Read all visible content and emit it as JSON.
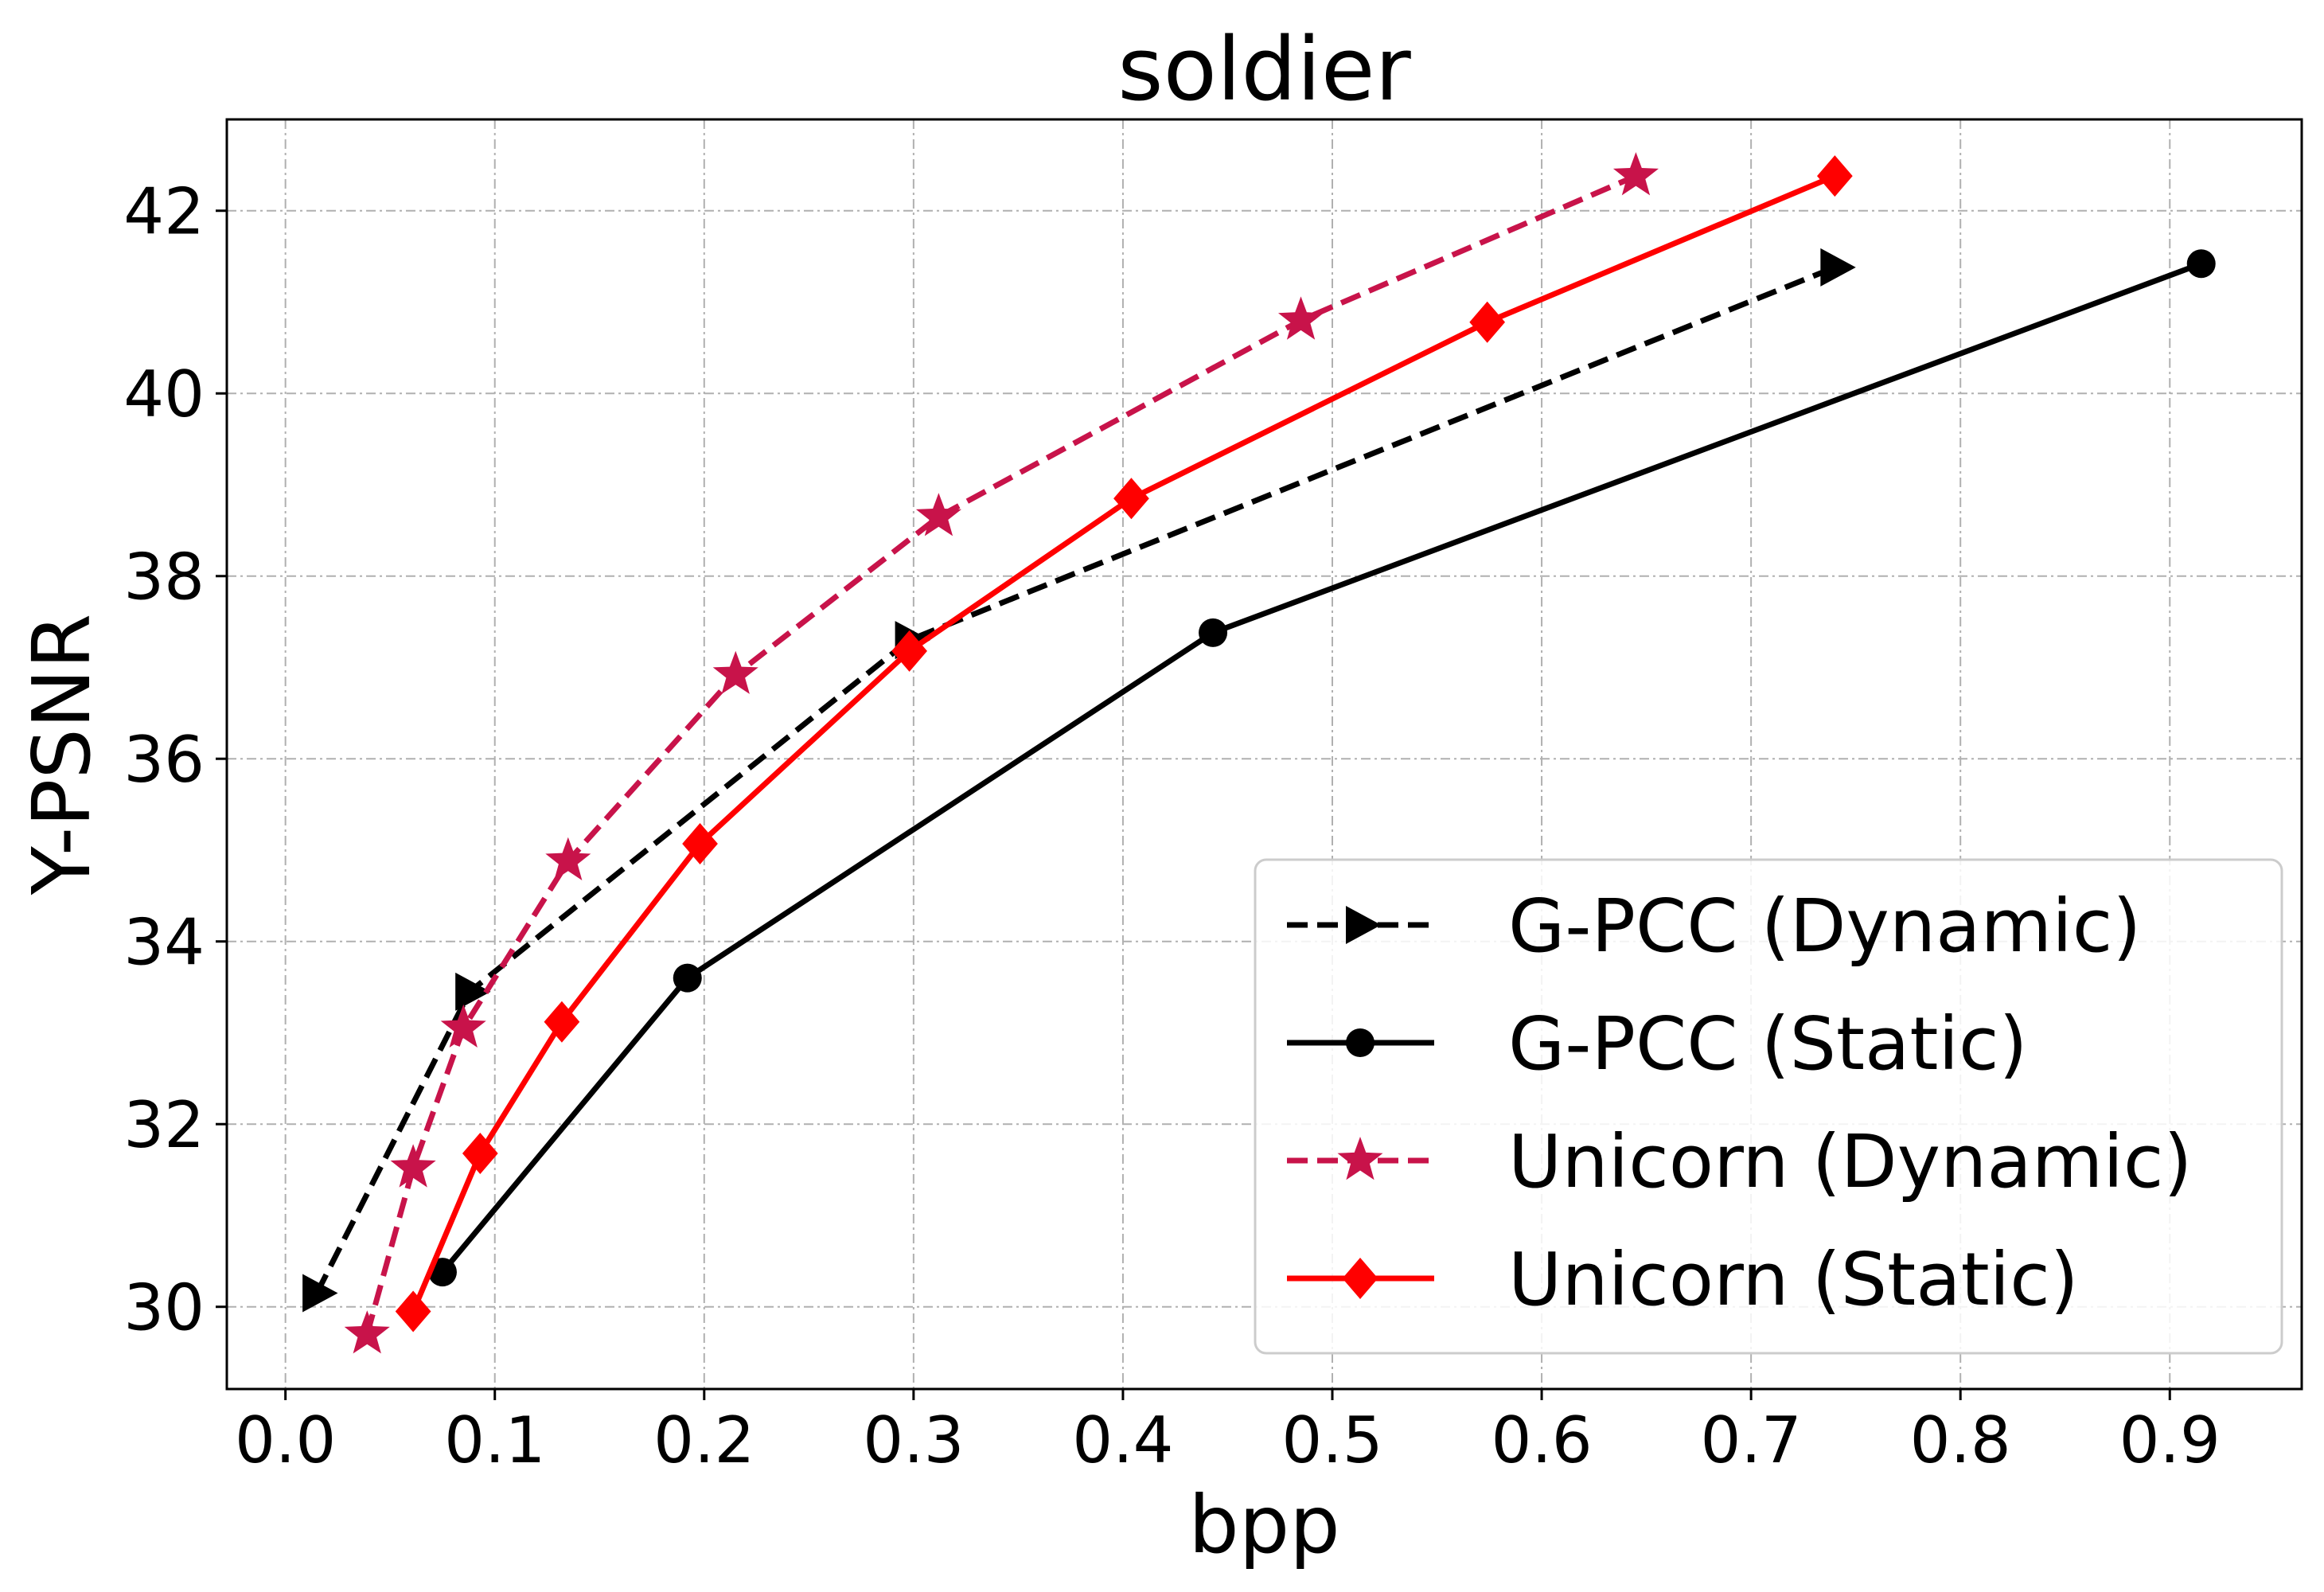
{
  "chart_data": {
    "type": "line",
    "title": "soldier",
    "xlabel": "bpp",
    "ylabel": "Y-PSNR",
    "xlim": [
      -0.028,
      0.963
    ],
    "ylim": [
      29.1,
      43.0
    ],
    "xticks": [
      0.0,
      0.1,
      0.2,
      0.3,
      0.4,
      0.5,
      0.6,
      0.7,
      0.8,
      0.9
    ],
    "xtick_labels": [
      "0.0",
      "0.1",
      "0.2",
      "0.3",
      "0.4",
      "0.5",
      "0.6",
      "0.7",
      "0.8",
      "0.9"
    ],
    "yticks": [
      30,
      32,
      34,
      36,
      38,
      40,
      42
    ],
    "ytick_labels": [
      "30",
      "32",
      "34",
      "36",
      "38",
      "40",
      "42"
    ],
    "grid": true,
    "legend_position": "lower-right",
    "series": [
      {
        "name": "G-PCC (Dynamic)",
        "color": "#000000",
        "linestyle": "dashed",
        "marker": "triangle-right",
        "x": [
          0.015,
          0.088,
          0.298,
          0.74
        ],
        "y": [
          30.15,
          33.45,
          37.3,
          41.38
        ]
      },
      {
        "name": "G-PCC (Static)",
        "color": "#000000",
        "linestyle": "solid",
        "marker": "circle",
        "x": [
          0.075,
          0.192,
          0.443,
          0.915
        ],
        "y": [
          30.38,
          33.6,
          37.38,
          41.42
        ]
      },
      {
        "name": "Unicorn (Dynamic)",
        "color": "#c8134a",
        "linestyle": "dashed",
        "marker": "star",
        "x": [
          0.039,
          0.061,
          0.085,
          0.135,
          0.215,
          0.312,
          0.485,
          0.645
        ],
        "y": [
          29.7,
          31.52,
          33.05,
          34.88,
          36.92,
          38.65,
          40.8,
          42.38
        ]
      },
      {
        "name": "Unicorn (Static)",
        "color": "#ff0000",
        "linestyle": "solid",
        "marker": "diamond",
        "x": [
          0.061,
          0.093,
          0.132,
          0.198,
          0.298,
          0.404,
          0.574,
          0.74
        ],
        "y": [
          29.95,
          31.68,
          33.12,
          35.07,
          37.18,
          38.85,
          40.78,
          42.38
        ]
      }
    ]
  }
}
